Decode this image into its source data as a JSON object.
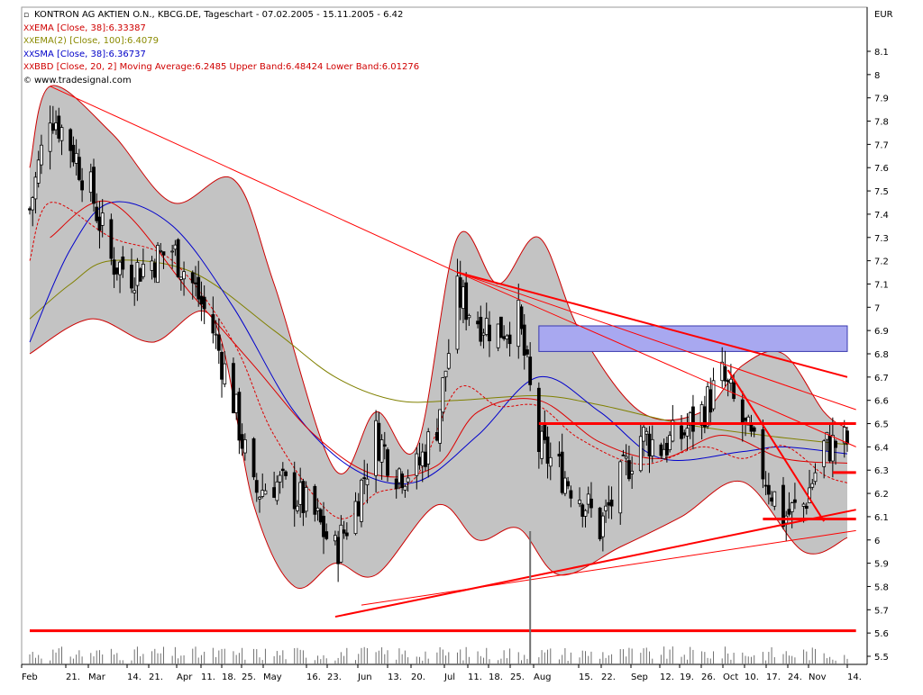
{
  "legend": {
    "title": "KONTRON AG AKTIEN O.N., KBCG.DE, Tageschart - 07.02.2005 - 15.11.2005 - 6.42",
    "ema38": "EMA [Close, 38]:6.33387",
    "ema100": "EMA(2) [Close, 100]:6.4079",
    "sma38": "SMA [Close, 38]:6.36737",
    "bbd": "BBD [Close, 20, 2] Moving Average:6.2485 Upper Band:6.48424 Lower Band:6.01276",
    "source": "www.tradesignal.com",
    "marker": "XX"
  },
  "colors": {
    "band_fill": "#c0c0c0",
    "band_line": "#cc0000",
    "ema38": "#dd0000",
    "ema100": "#808000",
    "sma38": "#0000cc",
    "trend": "#ff0000",
    "candle": "#000000",
    "zone": "#a8a8f0"
  },
  "chart_data": {
    "type": "candlestick",
    "currency": "EUR",
    "y_axis_range": [
      5.45,
      8.25
    ],
    "y_ticks": [
      "5.5",
      "5.6",
      "5.7",
      "5.8",
      "5.9",
      "6",
      "6.1",
      "6.2",
      "6.3",
      "6.4",
      "6.5",
      "6.6",
      "6.7",
      "6.8",
      "6.9",
      "7",
      "7.1",
      "7.2",
      "7.3",
      "7.4",
      "7.5",
      "7.6",
      "7.7",
      "7.8",
      "7.9",
      "8",
      "8.1"
    ],
    "x_ticks": [
      "Feb",
      "21.",
      "Mar",
      "14.",
      "21.",
      "Apr",
      "11.",
      "18.",
      "25.",
      "May",
      "16.",
      "23.",
      "Jun",
      "13.",
      "20.",
      "Jul",
      "11.",
      "18.",
      "25.",
      "Aug",
      "15.",
      "22.",
      "Sep",
      "12.",
      "19.",
      "26.",
      "Oct",
      "10.",
      "17.",
      "24.",
      "Nov",
      "14."
    ],
    "close_path": [
      [
        "2005-02-07",
        7.42
      ],
      [
        "2005-02-14",
        7.85
      ],
      [
        "2005-02-21",
        7.7
      ],
      [
        "2005-02-28",
        7.5
      ],
      [
        "2005-03-07",
        7.2
      ],
      [
        "2005-03-14",
        7.15
      ],
      [
        "2005-03-21",
        7.2
      ],
      [
        "2005-03-28",
        7.25
      ],
      [
        "2005-04-04",
        7.1
      ],
      [
        "2005-04-11",
        6.9
      ],
      [
        "2005-04-18",
        6.6
      ],
      [
        "2005-04-25",
        6.2
      ],
      [
        "2005-05-02",
        6.25
      ],
      [
        "2005-05-09",
        6.2
      ],
      [
        "2005-05-16",
        6.1
      ],
      [
        "2005-05-23",
        5.95
      ],
      [
        "2005-05-30",
        6.15
      ],
      [
        "2005-06-06",
        6.45
      ],
      [
        "2005-06-13",
        6.3
      ],
      [
        "2005-06-20",
        6.3
      ],
      [
        "2005-06-27",
        6.5
      ],
      [
        "2005-07-04",
        7.05
      ],
      [
        "2005-07-11",
        6.95
      ],
      [
        "2005-07-18",
        6.9
      ],
      [
        "2005-07-25",
        6.95
      ],
      [
        "2005-08-01",
        6.4
      ],
      [
        "2005-08-08",
        6.3
      ],
      [
        "2005-08-15",
        6.2
      ],
      [
        "2005-08-22",
        6.05
      ],
      [
        "2005-08-29",
        6.25
      ],
      [
        "2005-09-05",
        6.45
      ],
      [
        "2005-09-12",
        6.4
      ],
      [
        "2005-09-19",
        6.45
      ],
      [
        "2005-09-26",
        6.55
      ],
      [
        "2005-10-03",
        6.7
      ],
      [
        "2005-10-10",
        6.5
      ],
      [
        "2005-10-17",
        6.3
      ],
      [
        "2005-10-24",
        6.1
      ],
      [
        "2005-10-31",
        6.15
      ],
      [
        "2005-11-07",
        6.4
      ],
      [
        "2005-11-15",
        6.42
      ]
    ],
    "ema38_path": [
      [
        "2005-02-14",
        7.3
      ],
      [
        "2005-03-07",
        7.45
      ],
      [
        "2005-04-04",
        7.05
      ],
      [
        "2005-04-25",
        6.75
      ],
      [
        "2005-05-16",
        6.45
      ],
      [
        "2005-06-06",
        6.28
      ],
      [
        "2005-06-27",
        6.32
      ],
      [
        "2005-07-11",
        6.55
      ],
      [
        "2005-08-01",
        6.6
      ],
      [
        "2005-08-22",
        6.42
      ],
      [
        "2005-09-12",
        6.35
      ],
      [
        "2005-10-03",
        6.45
      ],
      [
        "2005-10-24",
        6.35
      ],
      [
        "2005-11-15",
        6.33
      ]
    ],
    "ema100_path": [
      [
        "2005-02-07",
        6.95
      ],
      [
        "2005-02-21",
        7.1
      ],
      [
        "2005-03-07",
        7.2
      ],
      [
        "2005-04-04",
        7.15
      ],
      [
        "2005-05-02",
        6.9
      ],
      [
        "2005-05-23",
        6.7
      ],
      [
        "2005-06-13",
        6.6
      ],
      [
        "2005-07-04",
        6.6
      ],
      [
        "2005-08-01",
        6.62
      ],
      [
        "2005-08-22",
        6.58
      ],
      [
        "2005-09-19",
        6.5
      ],
      [
        "2005-10-17",
        6.45
      ],
      [
        "2005-11-15",
        6.41
      ]
    ],
    "sma38_path": [
      [
        "2005-02-07",
        6.85
      ],
      [
        "2005-02-21",
        7.25
      ],
      [
        "2005-03-07",
        7.45
      ],
      [
        "2005-03-28",
        7.35
      ],
      [
        "2005-04-18",
        7.0
      ],
      [
        "2005-05-09",
        6.55
      ],
      [
        "2005-05-30",
        6.3
      ],
      [
        "2005-06-20",
        6.25
      ],
      [
        "2005-07-11",
        6.45
      ],
      [
        "2005-08-01",
        6.7
      ],
      [
        "2005-08-22",
        6.55
      ],
      [
        "2005-09-12",
        6.35
      ],
      [
        "2005-10-10",
        6.38
      ],
      [
        "2005-10-24",
        6.4
      ],
      [
        "2005-11-15",
        6.37
      ]
    ],
    "bb_upper_path": [
      [
        "2005-02-07",
        7.6
      ],
      [
        "2005-02-14",
        7.95
      ],
      [
        "2005-03-07",
        7.75
      ],
      [
        "2005-03-28",
        7.45
      ],
      [
        "2005-04-18",
        7.55
      ],
      [
        "2005-05-02",
        7.1
      ],
      [
        "2005-05-23",
        6.3
      ],
      [
        "2005-06-06",
        6.55
      ],
      [
        "2005-06-20",
        6.4
      ],
      [
        "2005-07-04",
        7.3
      ],
      [
        "2005-07-18",
        7.1
      ],
      [
        "2005-08-01",
        7.3
      ],
      [
        "2005-08-15",
        6.9
      ],
      [
        "2005-09-05",
        6.55
      ],
      [
        "2005-09-26",
        6.55
      ],
      [
        "2005-10-10",
        6.75
      ],
      [
        "2005-10-24",
        6.8
      ],
      [
        "2005-11-07",
        6.55
      ],
      [
        "2005-11-15",
        6.48
      ]
    ],
    "bb_lower_path": [
      [
        "2005-02-07",
        6.8
      ],
      [
        "2005-02-28",
        6.95
      ],
      [
        "2005-03-21",
        6.85
      ],
      [
        "2005-04-11",
        6.95
      ],
      [
        "2005-04-25",
        6.15
      ],
      [
        "2005-05-09",
        5.8
      ],
      [
        "2005-05-23",
        5.9
      ],
      [
        "2005-06-06",
        5.85
      ],
      [
        "2005-06-27",
        6.15
      ],
      [
        "2005-07-11",
        6.0
      ],
      [
        "2005-07-25",
        6.05
      ],
      [
        "2005-08-08",
        5.85
      ],
      [
        "2005-08-29",
        5.97
      ],
      [
        "2005-09-19",
        6.1
      ],
      [
        "2005-10-10",
        6.25
      ],
      [
        "2005-10-31",
        5.95
      ],
      [
        "2005-11-15",
        6.01
      ]
    ],
    "trendlines": [
      {
        "from": [
          "2005-02-14",
          7.95
        ],
        "to": [
          "2005-07-04",
          7.15
        ]
      },
      {
        "from": [
          "2005-07-04",
          7.15
        ],
        "to": [
          "2005-11-15",
          6.7
        ]
      },
      {
        "from": [
          "2005-07-04",
          7.15
        ],
        "to": [
          "2005-11-18",
          6.56
        ]
      },
      {
        "from": [
          "2005-07-04",
          7.15
        ],
        "to": [
          "2005-11-18",
          6.4
        ]
      },
      {
        "from": [
          "2005-10-05",
          6.73
        ],
        "to": [
          "2005-11-07",
          6.08
        ]
      },
      {
        "from": [
          "2005-05-23",
          5.67
        ],
        "to": [
          "2005-11-18",
          6.13
        ]
      },
      {
        "from": [
          "2005-06-01",
          5.72
        ],
        "to": [
          "2005-11-18",
          6.04
        ]
      }
    ],
    "horizontal_lines": [
      {
        "level": 5.61,
        "from": "2005-02-07",
        "to": "2005-11-18"
      },
      {
        "level": 6.5,
        "from": "2005-08-01",
        "to": "2005-11-18"
      },
      {
        "level": 6.29,
        "from": "2005-11-10",
        "to": "2005-11-18"
      },
      {
        "level": 6.09,
        "from": "2005-10-17",
        "to": "2005-11-18"
      }
    ],
    "zone": {
      "from": "2005-08-01",
      "to": "2005-11-15",
      "low": 6.81,
      "high": 6.92
    }
  }
}
